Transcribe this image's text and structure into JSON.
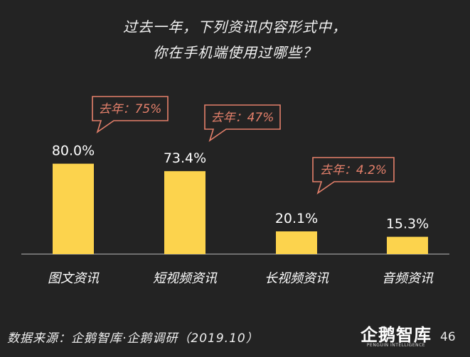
{
  "title": {
    "line1": "过去一年，下列资讯内容形式中，",
    "line2": "你在手机端使用过哪些？"
  },
  "chart_data": {
    "type": "bar",
    "categories": [
      "图文资讯",
      "短视频资讯",
      "长视频资讯",
      "音频资讯"
    ],
    "values": [
      80.0,
      73.4,
      20.1,
      15.3
    ],
    "value_labels": [
      "80.0%",
      "73.4%",
      "20.1%",
      "15.3%"
    ],
    "annotations": [
      {
        "category": "图文资讯",
        "text": "去年：75%"
      },
      {
        "category": "短视频资讯",
        "text": "去年：47%"
      },
      {
        "category": "长视频资讯",
        "text": "去年：4.2%"
      }
    ],
    "ylim": [
      0,
      100
    ],
    "grid": false,
    "bar_color": "#fcd34d",
    "callout_color": "#e4806b"
  },
  "footer": {
    "source": "数据来源：企鹅智库·企鹅调研（2019.10）",
    "logo_name": "企鹅智库",
    "logo_sub": "PENGUIN INTELLIGENCE",
    "page_number": "46"
  }
}
